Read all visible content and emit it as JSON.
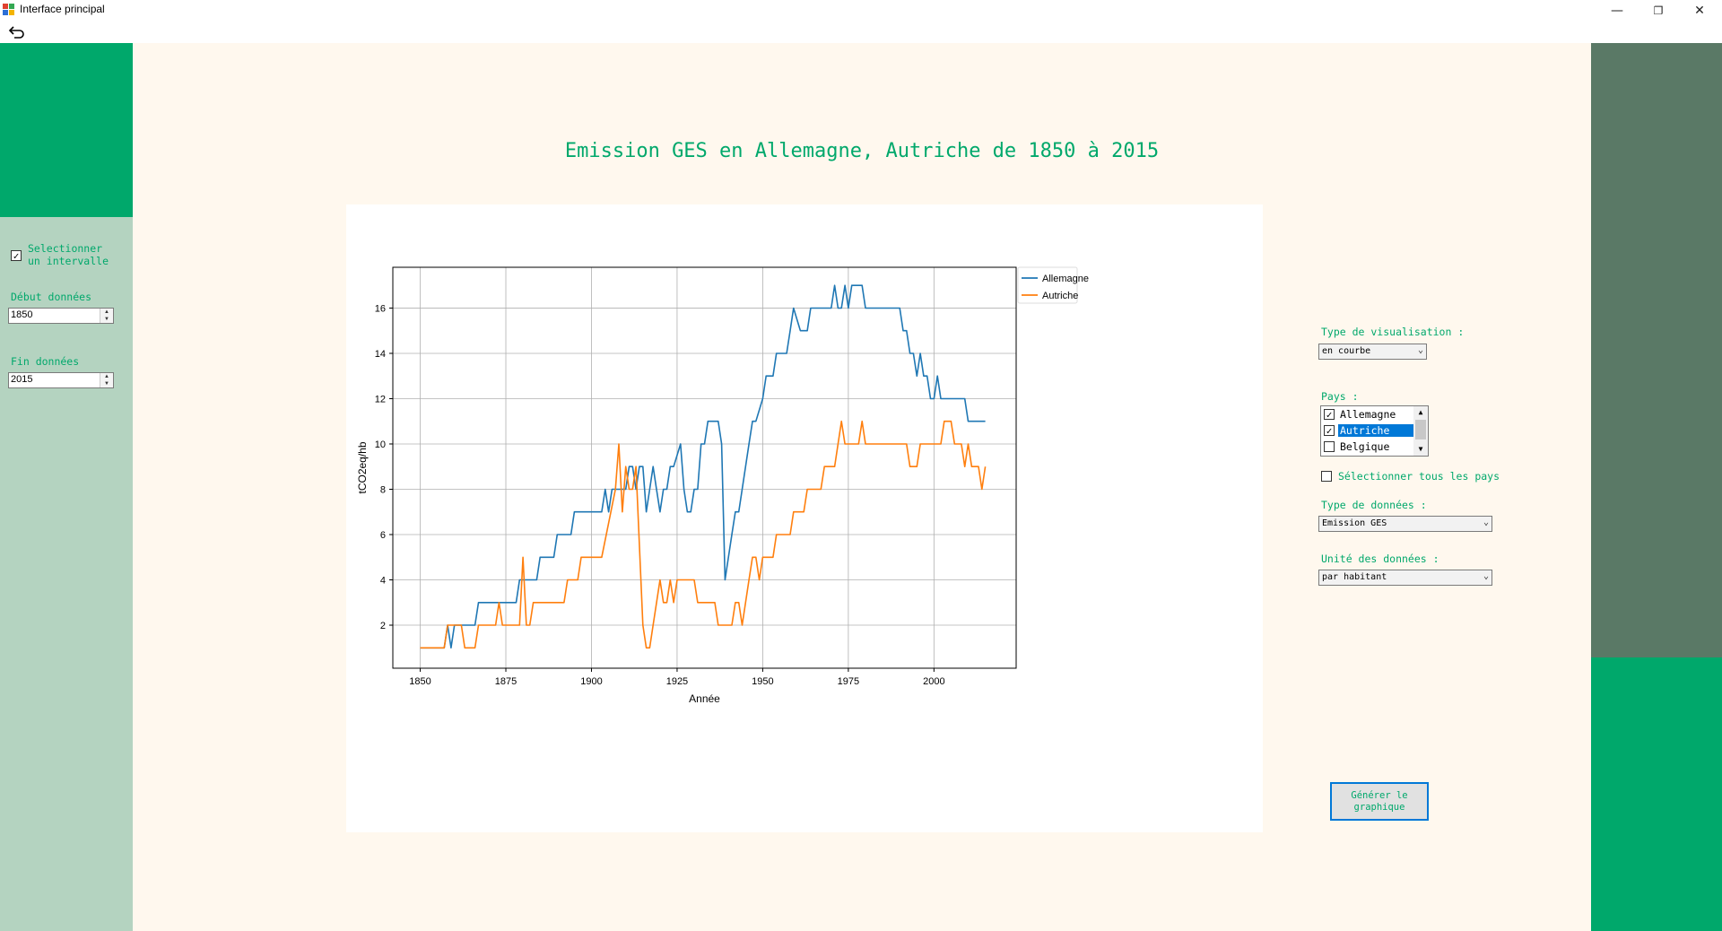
{
  "window": {
    "title": "Interface principal",
    "controls": [
      "—",
      "❐",
      "✕"
    ]
  },
  "left": {
    "interval_checked": true,
    "interval_label_line1": "Selectionner",
    "interval_label_line2": "un intervalle",
    "start_label": "Début données",
    "start_value": "1850",
    "end_label": "Fin données",
    "end_value": "2015"
  },
  "main": {
    "title": "Emission GES en Allemagne, Autriche de 1850 à 2015"
  },
  "right": {
    "vis_label": "Type de visualisation :",
    "vis_value": "en courbe",
    "countries_label": "Pays :",
    "countries": [
      {
        "name": "Allemagne",
        "checked": true,
        "selected": false
      },
      {
        "name": "Autriche",
        "checked": true,
        "selected": true
      },
      {
        "name": "Belgique",
        "checked": false,
        "selected": false
      }
    ],
    "select_all_label": "Sélectionner tous les pays",
    "data_type_label": "Type de données :",
    "data_type_value": "Emission GES",
    "unit_label": "Unité des données :",
    "unit_value": "par habitant",
    "generate_line1": "Générer le",
    "generate_line2": "graphique"
  },
  "colors": {
    "green": "#00a86b",
    "blue": "#1f77b4",
    "orange": "#ff7f0e"
  },
  "chart_data": {
    "type": "line",
    "title": "",
    "xlabel": "Année",
    "ylabel": "tCO2eq/hb",
    "xlim": [
      1842,
      2024
    ],
    "ylim": [
      0.1,
      17.8
    ],
    "xticks": [
      1850,
      1875,
      1900,
      1925,
      1950,
      1975,
      2000
    ],
    "yticks": [
      2,
      4,
      6,
      8,
      10,
      12,
      14,
      16
    ],
    "grid": true,
    "legend": "outside-top-right",
    "series": [
      {
        "name": "Allemagne",
        "color": "#1f77b4",
        "x": [
          1850,
          1857,
          1858,
          1859,
          1860,
          1861,
          1866,
          1867,
          1868,
          1878,
          1879,
          1880,
          1884,
          1885,
          1889,
          1890,
          1894,
          1895,
          1898,
          1899,
          1903,
          1904,
          1905,
          1906,
          1910,
          1911,
          1912,
          1913,
          1914,
          1915,
          1916,
          1917,
          1918,
          1919,
          1920,
          1921,
          1922,
          1923,
          1924,
          1926,
          1927,
          1928,
          1929,
          1930,
          1931,
          1932,
          1933,
          1934,
          1935,
          1937,
          1938,
          1939,
          1941,
          1942,
          1943,
          1944,
          1945,
          1946,
          1947,
          1948,
          1950,
          1951,
          1953,
          1954,
          1957,
          1958,
          1959,
          1961,
          1963,
          1964,
          1966,
          1967,
          1970,
          1971,
          1972,
          1973,
          1974,
          1975,
          1976,
          1977,
          1979,
          1980,
          1987,
          1988,
          1990,
          1991,
          1992,
          1993,
          1994,
          1995,
          1996,
          1997,
          1998,
          1999,
          2000,
          2001,
          2002,
          2005,
          2009,
          2010,
          2015
        ],
        "y": [
          1,
          1,
          2,
          1,
          2,
          2,
          2,
          3,
          3,
          3,
          4,
          4,
          4,
          5,
          5,
          6,
          6,
          7,
          7,
          7,
          7,
          8,
          7,
          8,
          8,
          9,
          9,
          8,
          9,
          9,
          7,
          8,
          9,
          8,
          7,
          8,
          8,
          9,
          9,
          10,
          8,
          7,
          7,
          8,
          8,
          10,
          10,
          11,
          11,
          11,
          10,
          4,
          6,
          7,
          7,
          8,
          9,
          10,
          11,
          11,
          12,
          13,
          13,
          14,
          14,
          15,
          16,
          15,
          15,
          16,
          16,
          16,
          16,
          17,
          16,
          16,
          17,
          16,
          17,
          17,
          17,
          16,
          16,
          16,
          16,
          15,
          15,
          14,
          14,
          13,
          14,
          13,
          13,
          12,
          12,
          13,
          12,
          12,
          12,
          11,
          11
        ]
      },
      {
        "name": "Autriche",
        "color": "#ff7f0e",
        "x": [
          1850,
          1857,
          1858,
          1862,
          1863,
          1866,
          1867,
          1872,
          1873,
          1874,
          1879,
          1880,
          1881,
          1882,
          1883,
          1892,
          1893,
          1896,
          1897,
          1903,
          1907,
          1908,
          1909,
          1910,
          1911,
          1912,
          1913,
          1915,
          1916,
          1917,
          1918,
          1920,
          1921,
          1922,
          1923,
          1924,
          1925,
          1926,
          1930,
          1931,
          1936,
          1937,
          1941,
          1942,
          1943,
          1944,
          1946,
          1947,
          1948,
          1949,
          1950,
          1953,
          1954,
          1958,
          1959,
          1962,
          1963,
          1966,
          1967,
          1968,
          1971,
          1972,
          1973,
          1974,
          1976,
          1978,
          1979,
          1980,
          1992,
          1993,
          1995,
          1996,
          2002,
          2003,
          2005,
          2006,
          2008,
          2009,
          2010,
          2011,
          2013,
          2014,
          2015
        ],
        "y": [
          1,
          1,
          2,
          2,
          1,
          1,
          2,
          2,
          3,
          2,
          2,
          5,
          2,
          2,
          3,
          3,
          4,
          4,
          5,
          5,
          8,
          10,
          7,
          9,
          8,
          8,
          9,
          2,
          1,
          1,
          2,
          4,
          3,
          3,
          4,
          3,
          4,
          4,
          4,
          3,
          3,
          2,
          2,
          3,
          3,
          2,
          4,
          5,
          5,
          4,
          5,
          5,
          6,
          6,
          7,
          7,
          8,
          8,
          8,
          9,
          9,
          10,
          11,
          10,
          10,
          10,
          11,
          10,
          10,
          9,
          9,
          10,
          10,
          11,
          11,
          10,
          10,
          9,
          10,
          9,
          9,
          8,
          9
        ]
      }
    ]
  }
}
